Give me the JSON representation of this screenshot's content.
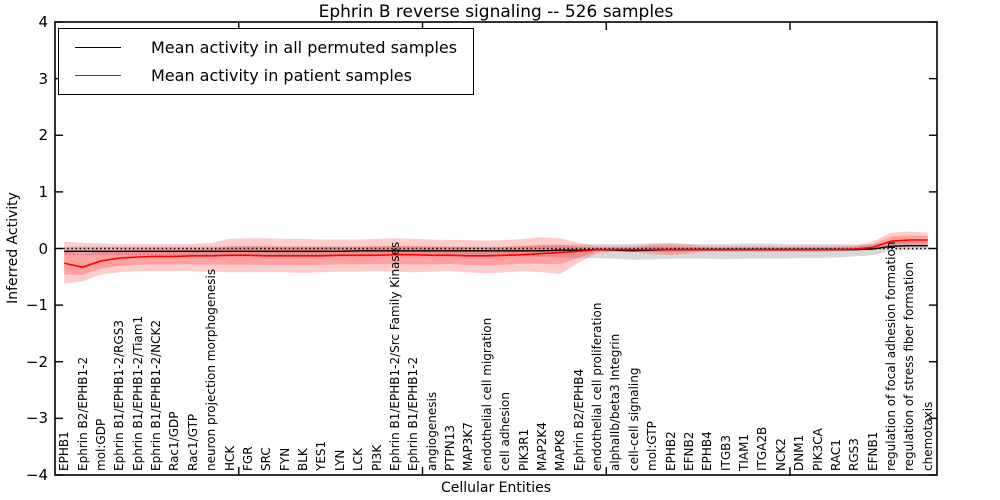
{
  "chart_data": {
    "type": "line",
    "title": "Ephrin B reverse signaling -- 526 samples",
    "xlabel": "Cellular Entities",
    "ylabel": "Inferred Activity",
    "ylim": [
      -4,
      4
    ],
    "ytick_values": [
      4,
      3,
      2,
      1,
      0,
      -1,
      -2,
      -3,
      -4
    ],
    "ytick_labels": [
      "4",
      "3",
      "2",
      "1",
      "0",
      "−1",
      "−2",
      "−3",
      "−4"
    ],
    "x_major_ticks": [
      10,
      20,
      30,
      40
    ],
    "grid": false,
    "legend_position": "upper left",
    "zero_reference_line": true,
    "categories": [
      "EPHB1",
      "Ephrin B2/EPHB1-2",
      "mol:GDP",
      "Ephrin B1/EPHB1-2/RGS3",
      "Ephrin B1/EPHB1-2/Tiam1",
      "Ephrin B1/EPHB1-2/NCK2",
      "Rac1/GDP",
      "Rac1/GTP",
      "neuron projection morphogenesis",
      "HCK",
      "FGR",
      "SRC",
      "FYN",
      "BLK",
      "YES1",
      "LYN",
      "LCK",
      "PI3K",
      "Ephrin B1/EPHB1-2/Src Family Kinases",
      "Ephrin B1/EPHB1-2",
      "angiogenesis",
      "PTPN13",
      "MAP3K7",
      "endothelial cell migration",
      "cell adhesion",
      "PIK3R1",
      "MAP2K4",
      "MAPK8",
      "Ephrin B2/EPHB4",
      "endothelial cell proliferation",
      "alphaIIb/beta3 Integrin",
      "cell-cell signaling",
      "mol:GTP",
      "EPHB2",
      "EFNB2",
      "EPHB4",
      "ITGB3",
      "TIAM1",
      "ITGA2B",
      "NCK2",
      "DNM1",
      "PIK3CA",
      "RAC1",
      "RGS3",
      "EFNB1",
      "regulation of focal adhesion formation",
      "regulation of stress fiber formation",
      "chemotaxis"
    ],
    "series": [
      {
        "name": "Mean activity in all permuted samples",
        "color": "#000000",
        "values": [
          -0.05,
          -0.05,
          -0.05,
          -0.05,
          -0.05,
          -0.05,
          -0.05,
          -0.05,
          -0.05,
          -0.05,
          -0.05,
          -0.05,
          -0.05,
          -0.05,
          -0.05,
          -0.05,
          -0.04,
          -0.04,
          -0.04,
          -0.04,
          -0.04,
          -0.04,
          -0.04,
          -0.04,
          -0.04,
          -0.04,
          -0.04,
          -0.03,
          -0.03,
          -0.02,
          -0.03,
          -0.04,
          -0.03,
          -0.02,
          -0.02,
          -0.02,
          -0.02,
          -0.02,
          -0.02,
          -0.02,
          -0.02,
          -0.02,
          -0.02,
          -0.02,
          -0.01,
          0.04,
          0.05,
          0.05
        ],
        "band": {
          "color": "#999999",
          "opacity": 0.38,
          "hi": [
            0.03,
            0.03,
            0.03,
            0.03,
            0.03,
            0.03,
            0.03,
            0.03,
            0.03,
            0.03,
            0.03,
            0.03,
            0.03,
            0.03,
            0.03,
            0.03,
            0.03,
            0.03,
            0.03,
            0.03,
            0.03,
            0.03,
            0.03,
            0.03,
            0.03,
            0.04,
            0.05,
            0.06,
            0.07,
            0.08,
            0.08,
            0.08,
            0.09,
            0.09,
            0.08,
            0.08,
            0.08,
            0.09,
            0.09,
            0.08,
            0.08,
            0.08,
            0.08,
            0.07,
            0.07,
            0.12,
            0.13,
            0.12
          ],
          "lo": [
            -0.12,
            -0.12,
            -0.12,
            -0.12,
            -0.12,
            -0.12,
            -0.12,
            -0.12,
            -0.12,
            -0.12,
            -0.12,
            -0.12,
            -0.12,
            -0.12,
            -0.12,
            -0.12,
            -0.12,
            -0.12,
            -0.12,
            -0.12,
            -0.12,
            -0.12,
            -0.12,
            -0.12,
            -0.13,
            -0.14,
            -0.15,
            -0.16,
            -0.17,
            -0.17,
            -0.18,
            -0.2,
            -0.19,
            -0.18,
            -0.18,
            -0.18,
            -0.19,
            -0.18,
            -0.18,
            -0.18,
            -0.17,
            -0.17,
            -0.16,
            -0.14,
            -0.12,
            -0.04,
            -0.03,
            -0.03
          ]
        }
      },
      {
        "name": "Mean activity in patient samples",
        "color": "#ff0000",
        "values": [
          -0.26,
          -0.33,
          -0.22,
          -0.17,
          -0.15,
          -0.14,
          -0.14,
          -0.13,
          -0.13,
          -0.12,
          -0.12,
          -0.13,
          -0.13,
          -0.13,
          -0.13,
          -0.12,
          -0.12,
          -0.12,
          -0.11,
          -0.11,
          -0.12,
          -0.12,
          -0.13,
          -0.13,
          -0.12,
          -0.11,
          -0.09,
          -0.07,
          -0.05,
          -0.02,
          -0.02,
          -0.02,
          -0.02,
          -0.02,
          -0.02,
          -0.02,
          -0.02,
          -0.02,
          -0.02,
          -0.02,
          -0.02,
          -0.02,
          -0.02,
          -0.01,
          0.02,
          0.13,
          0.15,
          0.15
        ],
        "band": {
          "color": "#ff3333",
          "opacity": 0.25,
          "inner_scale": 0.55,
          "inner_opacity": 0.28,
          "hi": [
            0.12,
            0.1,
            0.09,
            0.08,
            0.08,
            0.08,
            0.08,
            0.08,
            0.1,
            0.17,
            0.18,
            0.18,
            0.17,
            0.17,
            0.16,
            0.16,
            0.16,
            0.17,
            0.18,
            0.17,
            0.16,
            0.15,
            0.15,
            0.14,
            0.15,
            0.17,
            0.2,
            0.18,
            0.1,
            0.04,
            0.04,
            0.04,
            0.08,
            0.09,
            0.07,
            0.04,
            0.04,
            0.04,
            0.04,
            0.04,
            0.04,
            0.04,
            0.04,
            0.05,
            0.12,
            0.28,
            0.3,
            0.28
          ],
          "lo": [
            -0.62,
            -0.58,
            -0.46,
            -0.42,
            -0.4,
            -0.4,
            -0.4,
            -0.4,
            -0.41,
            -0.42,
            -0.42,
            -0.42,
            -0.42,
            -0.43,
            -0.42,
            -0.41,
            -0.41,
            -0.4,
            -0.41,
            -0.42,
            -0.41,
            -0.4,
            -0.42,
            -0.44,
            -0.42,
            -0.4,
            -0.42,
            -0.45,
            -0.25,
            -0.08,
            -0.06,
            -0.06,
            -0.1,
            -0.12,
            -0.09,
            -0.06,
            -0.06,
            -0.06,
            -0.06,
            -0.06,
            -0.06,
            -0.06,
            -0.05,
            -0.04,
            -0.02,
            0.02,
            0.03,
            0.03
          ]
        }
      }
    ]
  },
  "colors": {
    "frame": "#000000",
    "zero_line": "#000000",
    "background": "#ffffff"
  }
}
